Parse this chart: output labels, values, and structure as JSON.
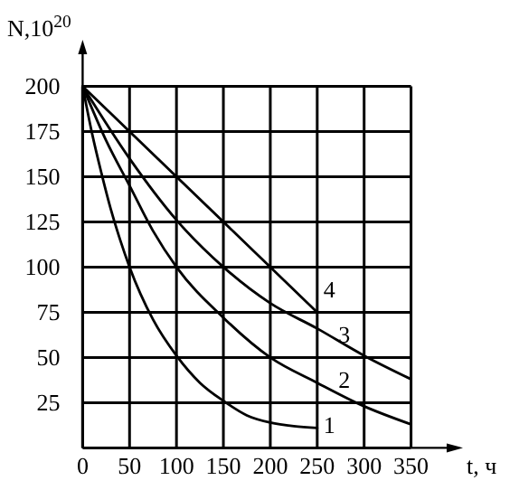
{
  "chart_data": {
    "type": "line",
    "xlabel": "t, ч",
    "ylabel": "N,10$^{20}$",
    "xlim": [
      0,
      350
    ],
    "ylim": [
      0,
      200
    ],
    "xticks": [
      0,
      50,
      100,
      150,
      200,
      250,
      300,
      350
    ],
    "yticks": [
      25,
      50,
      75,
      100,
      125,
      150,
      175,
      200
    ],
    "grid": true,
    "series": [
      {
        "name": "1",
        "color": "#000000",
        "x": [
          0,
          10,
          20,
          30,
          40,
          50,
          75,
          100,
          125,
          150,
          175,
          200,
          225,
          250
        ],
        "values": [
          200,
          174,
          152,
          132,
          115,
          100,
          71,
          51,
          36,
          26,
          18,
          14,
          12,
          11
        ]
      },
      {
        "name": "2",
        "color": "#000000",
        "x": [
          0,
          25,
          50,
          75,
          100,
          150,
          200,
          250,
          300,
          350
        ],
        "values": [
          200,
          170,
          145,
          120,
          100,
          72,
          50,
          36,
          23,
          13
        ]
      },
      {
        "name": "3",
        "color": "#000000",
        "x": [
          0,
          50,
          100,
          150,
          200,
          250,
          300,
          350
        ],
        "values": [
          200,
          160,
          126,
          100,
          80,
          66,
          51,
          38
        ]
      },
      {
        "name": "4",
        "color": "#000000",
        "x": [
          0,
          250
        ],
        "values": [
          200,
          75
        ]
      }
    ]
  }
}
